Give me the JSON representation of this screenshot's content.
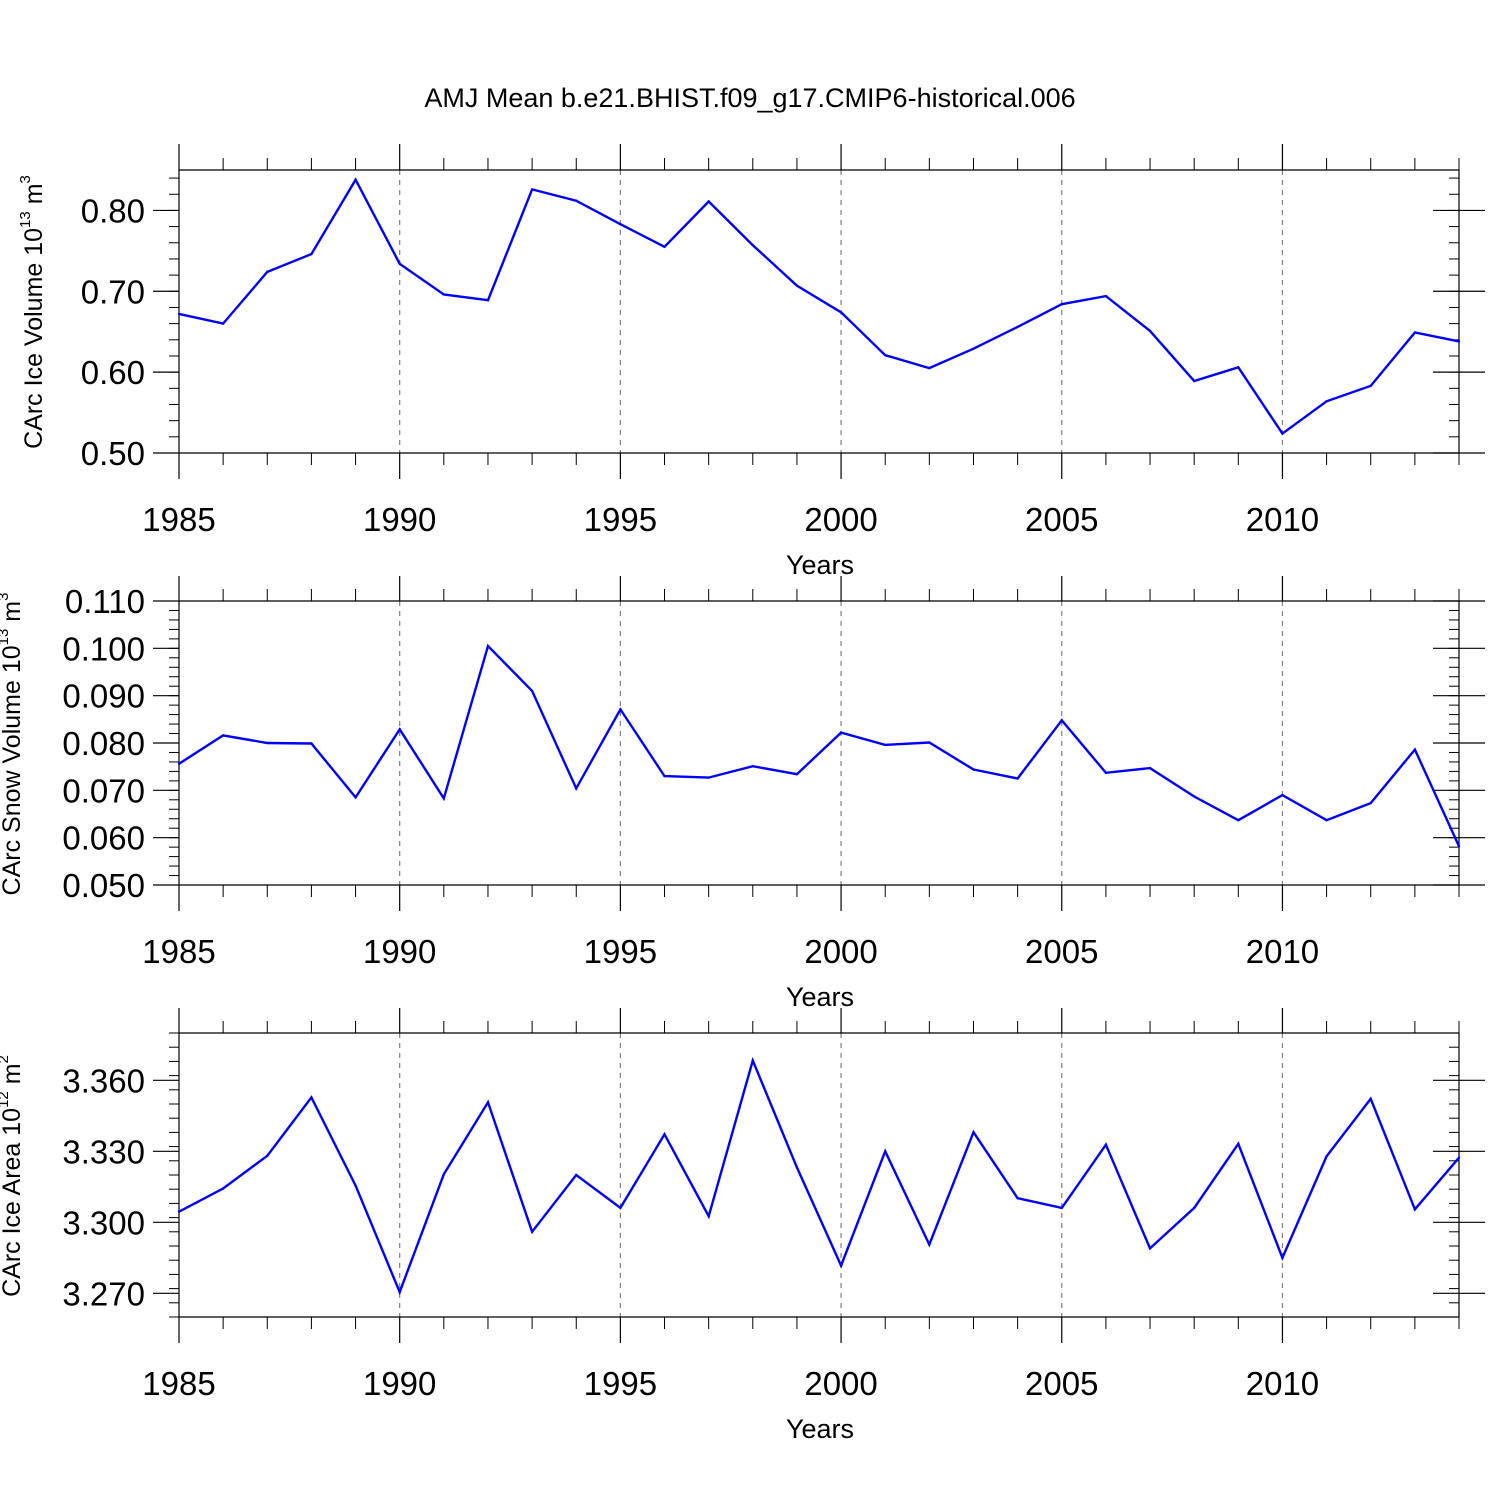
{
  "figure_title": "AMJ Mean b.e21.BHIST.f09_g17.CMIP6-historical.006",
  "colors": {
    "line": "#0000ff",
    "axis": "#000000",
    "grid": "#808080"
  },
  "chart_data": [
    {
      "type": "line",
      "ylabel": {
        "text": "CArc Ice Volume 10",
        "exp": "13",
        "unit": " m",
        "unit_exp": "3"
      },
      "xlabel": "Years",
      "xlim": [
        1985,
        2014
      ],
      "ylim": [
        0.5,
        0.85
      ],
      "xticks": [
        "1985",
        "1990",
        "1995",
        "2000",
        "2005",
        "2010"
      ],
      "yticks": [
        "0.50",
        "0.60",
        "0.70",
        "0.80"
      ],
      "ytick_values": [
        0.5,
        0.6,
        0.7,
        0.8
      ],
      "yminor_step": 0.02,
      "vertical_grid_at": [
        1990,
        1995,
        2000,
        2005,
        2010
      ],
      "x": [
        1985,
        1986,
        1987,
        1988,
        1989,
        1990,
        1991,
        1992,
        1993,
        1994,
        1995,
        1996,
        1997,
        1998,
        1999,
        2000,
        2001,
        2002,
        2003,
        2004,
        2005,
        2006,
        2007,
        2008,
        2009,
        2010,
        2011,
        2012,
        2013,
        2014
      ],
      "values": [
        0.672,
        0.66,
        0.724,
        0.746,
        0.838,
        0.734,
        0.696,
        0.689,
        0.826,
        0.812,
        0.783,
        0.755,
        0.811,
        0.757,
        0.707,
        0.674,
        0.621,
        0.605,
        0.629,
        0.656,
        0.684,
        0.694,
        0.651,
        0.589,
        0.606,
        0.524,
        0.564,
        0.583,
        0.649,
        0.638
      ]
    },
    {
      "type": "line",
      "ylabel": {
        "text": "CArc Snow Volume 10",
        "exp": "13",
        "unit": " m",
        "unit_exp": "3"
      },
      "xlabel": "Years",
      "xlim": [
        1985,
        2014
      ],
      "ylim": [
        0.05,
        0.11
      ],
      "xticks": [
        "1985",
        "1990",
        "1995",
        "2000",
        "2005",
        "2010"
      ],
      "yticks": [
        "0.050",
        "0.060",
        "0.070",
        "0.080",
        "0.090",
        "0.100",
        "0.110"
      ],
      "ytick_values": [
        0.05,
        0.06,
        0.07,
        0.08,
        0.09,
        0.1,
        0.11
      ],
      "yminor_step": 0.002,
      "vertical_grid_at": [
        1990,
        1995,
        2000,
        2005,
        2010
      ],
      "x": [
        1985,
        1986,
        1987,
        1988,
        1989,
        1990,
        1991,
        1992,
        1993,
        1994,
        1995,
        1996,
        1997,
        1998,
        1999,
        2000,
        2001,
        2002,
        2003,
        2004,
        2005,
        2006,
        2007,
        2008,
        2009,
        2010,
        2011,
        2012,
        2013,
        2014
      ],
      "values": [
        0.0756,
        0.0816,
        0.08,
        0.0799,
        0.0685,
        0.0829,
        0.0683,
        0.1005,
        0.091,
        0.0704,
        0.0871,
        0.073,
        0.0727,
        0.0751,
        0.0734,
        0.0822,
        0.0796,
        0.0801,
        0.0744,
        0.0725,
        0.0848,
        0.0737,
        0.0747,
        0.0687,
        0.0637,
        0.069,
        0.0637,
        0.0673,
        0.0786,
        0.0582
      ]
    },
    {
      "type": "line",
      "ylabel": {
        "text": "CArc Ice Area 10",
        "exp": "12",
        "unit": " m",
        "unit_exp": "2"
      },
      "xlabel": "Years",
      "xlim": [
        1985,
        2014
      ],
      "ylim": [
        3.26,
        3.38
      ],
      "xticks": [
        "1985",
        "1990",
        "1995",
        "2000",
        "2005",
        "2010"
      ],
      "yticks": [
        "3.270",
        "3.300",
        "3.330",
        "3.360"
      ],
      "ytick_values": [
        3.27,
        3.3,
        3.33,
        3.36
      ],
      "yminor_step": 0.006,
      "vertical_grid_at": [
        1990,
        1995,
        2000,
        2005,
        2010
      ],
      "x": [
        1985,
        1986,
        1987,
        1988,
        1989,
        1990,
        1991,
        1992,
        1993,
        1994,
        1995,
        1996,
        1997,
        1998,
        1999,
        2000,
        2001,
        2002,
        2003,
        2004,
        2005,
        2006,
        2007,
        2008,
        2009,
        2010,
        2011,
        2012,
        2013,
        2014
      ],
      "values": [
        3.3045,
        3.3143,
        3.3281,
        3.3528,
        3.3155,
        3.2705,
        3.3203,
        3.3507,
        3.296,
        3.32,
        3.3061,
        3.3372,
        3.3026,
        3.3684,
        3.3232,
        3.2817,
        3.33,
        3.2906,
        3.3381,
        3.3102,
        3.3061,
        3.3328,
        3.289,
        3.3061,
        3.3332,
        3.285,
        3.3279,
        3.3522,
        3.3055,
        3.3273
      ]
    }
  ]
}
